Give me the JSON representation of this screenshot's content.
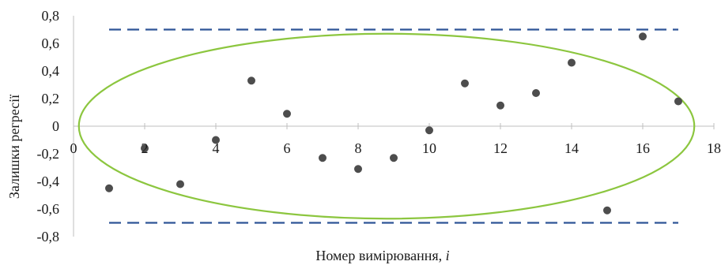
{
  "chart_data": {
    "type": "scatter",
    "title": "",
    "xlabel": "Номер вимірювання, ",
    "xlabel_variable": "i",
    "ylabel": "Залишки регресії",
    "xlim": [
      0,
      18
    ],
    "ylim": [
      -0.8,
      0.8
    ],
    "x_ticks": [
      0,
      2,
      4,
      6,
      8,
      10,
      12,
      14,
      16,
      18
    ],
    "y_ticks": [
      -0.8,
      -0.6,
      -0.4,
      -0.2,
      0,
      0.2,
      0.4,
      0.6,
      0.8
    ],
    "y_tick_labels": [
      "-0,8",
      "-0,6",
      "-0,4",
      "-0,2",
      "0",
      "0,2",
      "0,4",
      "0,6",
      "0,8"
    ],
    "grid": false,
    "series": [
      {
        "marker_color": "#4d4d4d",
        "points": [
          {
            "x": 1,
            "y": -0.45
          },
          {
            "x": 2,
            "y": -0.16
          },
          {
            "x": 3,
            "y": -0.42
          },
          {
            "x": 4,
            "y": -0.1
          },
          {
            "x": 5,
            "y": 0.33
          },
          {
            "x": 6,
            "y": 0.09
          },
          {
            "x": 7,
            "y": -0.23
          },
          {
            "x": 8,
            "y": -0.31
          },
          {
            "x": 9,
            "y": -0.23
          },
          {
            "x": 10,
            "y": -0.03
          },
          {
            "x": 11,
            "y": 0.31
          },
          {
            "x": 12,
            "y": 0.15
          },
          {
            "x": 13,
            "y": 0.24
          },
          {
            "x": 14,
            "y": 0.46
          },
          {
            "x": 15,
            "y": -0.61
          },
          {
            "x": 16,
            "y": 0.65
          },
          {
            "x": 17,
            "y": 0.18
          }
        ]
      }
    ],
    "reference_lines": [
      {
        "y": 0.7,
        "x_start": 1,
        "x_end": 17,
        "style": "dashed",
        "color": "#2f5597"
      },
      {
        "y": -0.7,
        "x_start": 1,
        "x_end": 17,
        "style": "dashed",
        "color": "#2f5597"
      }
    ],
    "ellipse": {
      "cx": 8.8,
      "cy": 0,
      "rx": 8.65,
      "ry": 0.67,
      "color": "#8cc63f"
    }
  }
}
